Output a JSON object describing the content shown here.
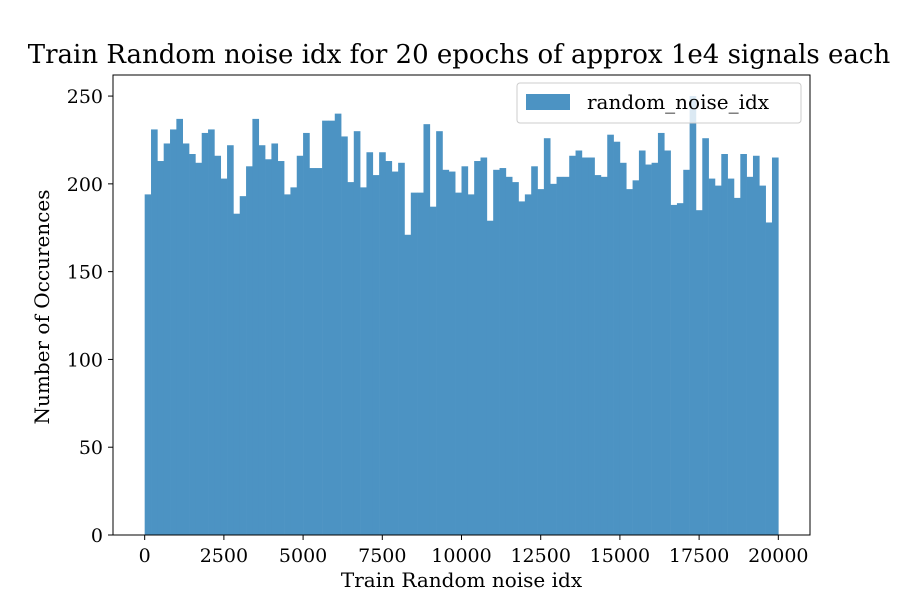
{
  "chart_data": {
    "type": "bar",
    "title": "Train Random noise idx for 20 epochs of approx 1e4 signals each",
    "xlabel": "Train Random noise idx",
    "ylabel": "Number of Occurences",
    "xlim": [
      -1000,
      21000
    ],
    "ylim": [
      0,
      262
    ],
    "xticks": [
      0,
      2500,
      5000,
      7500,
      10000,
      12500,
      15000,
      17500,
      20000
    ],
    "xtick_labels": [
      "0",
      "2500",
      "5000",
      "7500",
      "10000",
      "12500",
      "15000",
      "17500",
      "20000"
    ],
    "yticks": [
      0,
      50,
      100,
      150,
      200,
      250
    ],
    "ytick_labels": [
      "0",
      "50",
      "100",
      "150",
      "200",
      "250"
    ],
    "bin_range": [
      0,
      20000
    ],
    "bin_width": 200,
    "grid": false,
    "legend_position": "top-right",
    "series": [
      {
        "name": "random_noise_idx",
        "color": "#4c93c3",
        "values": [
          194,
          231,
          213,
          223,
          231,
          237,
          223,
          217,
          212,
          229,
          231,
          216,
          203,
          222,
          183,
          193,
          210,
          237,
          222,
          214,
          223,
          213,
          194,
          198,
          216,
          229,
          209,
          209,
          236,
          236,
          240,
          227,
          201,
          230,
          198,
          218,
          205,
          218,
          213,
          207,
          212,
          171,
          195,
          195,
          234,
          187,
          230,
          208,
          207,
          195,
          210,
          194,
          213,
          215,
          179,
          208,
          209,
          204,
          201,
          190,
          194,
          210,
          197,
          226,
          200,
          204,
          204,
          216,
          219,
          215,
          215,
          205,
          204,
          228,
          224,
          212,
          197,
          202,
          219,
          211,
          212,
          229,
          219,
          188,
          189,
          208,
          250,
          185,
          226,
          203,
          199,
          217,
          203,
          192,
          217,
          204,
          216,
          199,
          178,
          215
        ]
      }
    ]
  }
}
